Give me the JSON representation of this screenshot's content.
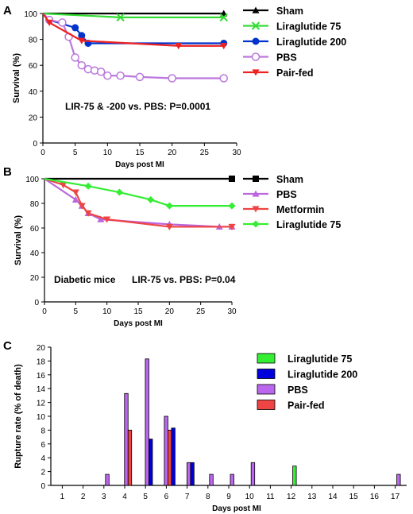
{
  "chart_data": [
    {
      "panel": "A",
      "type": "line",
      "xlabel": "Days post MI",
      "ylabel": "Survival (%)",
      "xlim": [
        0,
        30
      ],
      "ylim": [
        0,
        100
      ],
      "xticks": [
        "0",
        "5",
        "10",
        "15",
        "20",
        "25",
        "30"
      ],
      "yticks": [
        "0",
        "20",
        "40",
        "60",
        "80",
        "100"
      ],
      "annotation": "LIR-75 & -200 vs. PBS: P=0.0001",
      "legend_position": "right",
      "series": [
        {
          "name": "Sham",
          "color": "#000000",
          "marker": "triangle",
          "points": [
            [
              0,
              100
            ],
            [
              28,
              100
            ]
          ]
        },
        {
          "name": "Liraglutide 75",
          "color": "#33dd33",
          "marker": "x",
          "points": [
            [
              0,
              100
            ],
            [
              12,
              97
            ],
            [
              28,
              97
            ]
          ]
        },
        {
          "name": "Liraglutide 200",
          "color": "#0033cc",
          "marker": "circle",
          "points": [
            [
              0,
              100
            ],
            [
              1,
              95
            ],
            [
              5,
              89
            ],
            [
              6,
              83
            ],
            [
              7,
              77
            ],
            [
              28,
              77
            ]
          ]
        },
        {
          "name": "PBS",
          "color": "#bb77dd",
          "marker": "open-circle",
          "points": [
            [
              0,
              100
            ],
            [
              1,
              95
            ],
            [
              3,
              93
            ],
            [
              4,
              82
            ],
            [
              5,
              66
            ],
            [
              6,
              60
            ],
            [
              7,
              57
            ],
            [
              8,
              56
            ],
            [
              9,
              55
            ],
            [
              10,
              52
            ],
            [
              12,
              52
            ],
            [
              15,
              51
            ],
            [
              20,
              50
            ],
            [
              28,
              50
            ]
          ]
        },
        {
          "name": "Pair-fed",
          "color": "#ee2222",
          "marker": "triangle-down",
          "points": [
            [
              0,
              100
            ],
            [
              1,
              93
            ],
            [
              6,
              79
            ],
            [
              21,
              75
            ],
            [
              28,
              75
            ]
          ]
        }
      ]
    },
    {
      "panel": "B",
      "type": "line",
      "xlabel": "Days post MI",
      "ylabel": "Survival (%)",
      "xlim": [
        0,
        30
      ],
      "ylim": [
        0,
        100
      ],
      "xticks": [
        "0",
        "5",
        "10",
        "15",
        "20",
        "25",
        "30"
      ],
      "yticks": [
        "0",
        "20",
        "40",
        "60",
        "80",
        "100"
      ],
      "annotation_left": "Diabetic mice",
      "annotation_right": "LIR-75 vs. PBS: P=0.04",
      "legend_position": "right",
      "series": [
        {
          "name": "Sham",
          "color": "#000000",
          "marker": "square",
          "points": [
            [
              0,
              100
            ],
            [
              30,
              100
            ]
          ]
        },
        {
          "name": "PBS",
          "color": "#bb66dd",
          "marker": "triangle",
          "points": [
            [
              0,
              100
            ],
            [
              5,
              83
            ],
            [
              6,
              78
            ],
            [
              7,
              72
            ],
            [
              9,
              67
            ],
            [
              20,
              63
            ],
            [
              28,
              61
            ],
            [
              30,
              61
            ]
          ]
        },
        {
          "name": "Metformin",
          "color": "#ee4444",
          "marker": "triangle-down",
          "points": [
            [
              0,
              100
            ],
            [
              3,
              95
            ],
            [
              5,
              89
            ],
            [
              6,
              78
            ],
            [
              7,
              72
            ],
            [
              10,
              67
            ],
            [
              20,
              61
            ],
            [
              30,
              61
            ]
          ]
        },
        {
          "name": "Liraglutide 75",
          "color": "#33ee33",
          "marker": "diamond",
          "points": [
            [
              0,
              100
            ],
            [
              7,
              94
            ],
            [
              12,
              89
            ],
            [
              17,
              83
            ],
            [
              20,
              78
            ],
            [
              30,
              78
            ]
          ]
        }
      ]
    },
    {
      "panel": "C",
      "type": "bar",
      "xlabel": "Days post MI",
      "ylabel": "Rupture rate (% of death)",
      "ylim": [
        0,
        20
      ],
      "yticks": [
        "0",
        "2",
        "4",
        "6",
        "8",
        "10",
        "12",
        "14",
        "16",
        "18",
        "20"
      ],
      "categories": [
        "1",
        "2",
        "3",
        "4",
        "5",
        "6",
        "7",
        "8",
        "9",
        "10",
        "11",
        "12",
        "13",
        "14",
        "15",
        "16",
        "17"
      ],
      "legend_position": "top-right",
      "series": [
        {
          "name": "Liraglutide 75",
          "color": "#33ee33",
          "values": [
            0,
            0,
            0,
            0,
            0,
            0,
            0,
            0,
            0,
            0,
            0,
            2.8,
            0,
            0,
            0,
            0,
            0
          ]
        },
        {
          "name": "Liraglutide 200",
          "color": "#0000dd",
          "values": [
            0,
            0,
            0,
            0,
            6.7,
            8.3,
            3.3,
            0,
            0,
            0,
            0,
            0,
            0,
            0,
            0,
            0,
            0
          ]
        },
        {
          "name": "PBS",
          "color": "#bb66ee",
          "values": [
            0,
            0,
            1.6,
            13.3,
            18.3,
            10,
            3.3,
            1.6,
            1.6,
            3.3,
            0,
            0,
            0,
            0,
            0,
            0,
            1.6
          ]
        },
        {
          "name": "Pair-fed",
          "color": "#ee4444",
          "values": [
            0,
            0,
            0,
            8,
            0,
            8,
            0,
            0,
            0,
            0,
            0,
            0,
            0,
            0,
            0,
            0,
            0
          ]
        }
      ]
    }
  ],
  "labels": {
    "a": "A",
    "b": "B",
    "c": "C"
  }
}
